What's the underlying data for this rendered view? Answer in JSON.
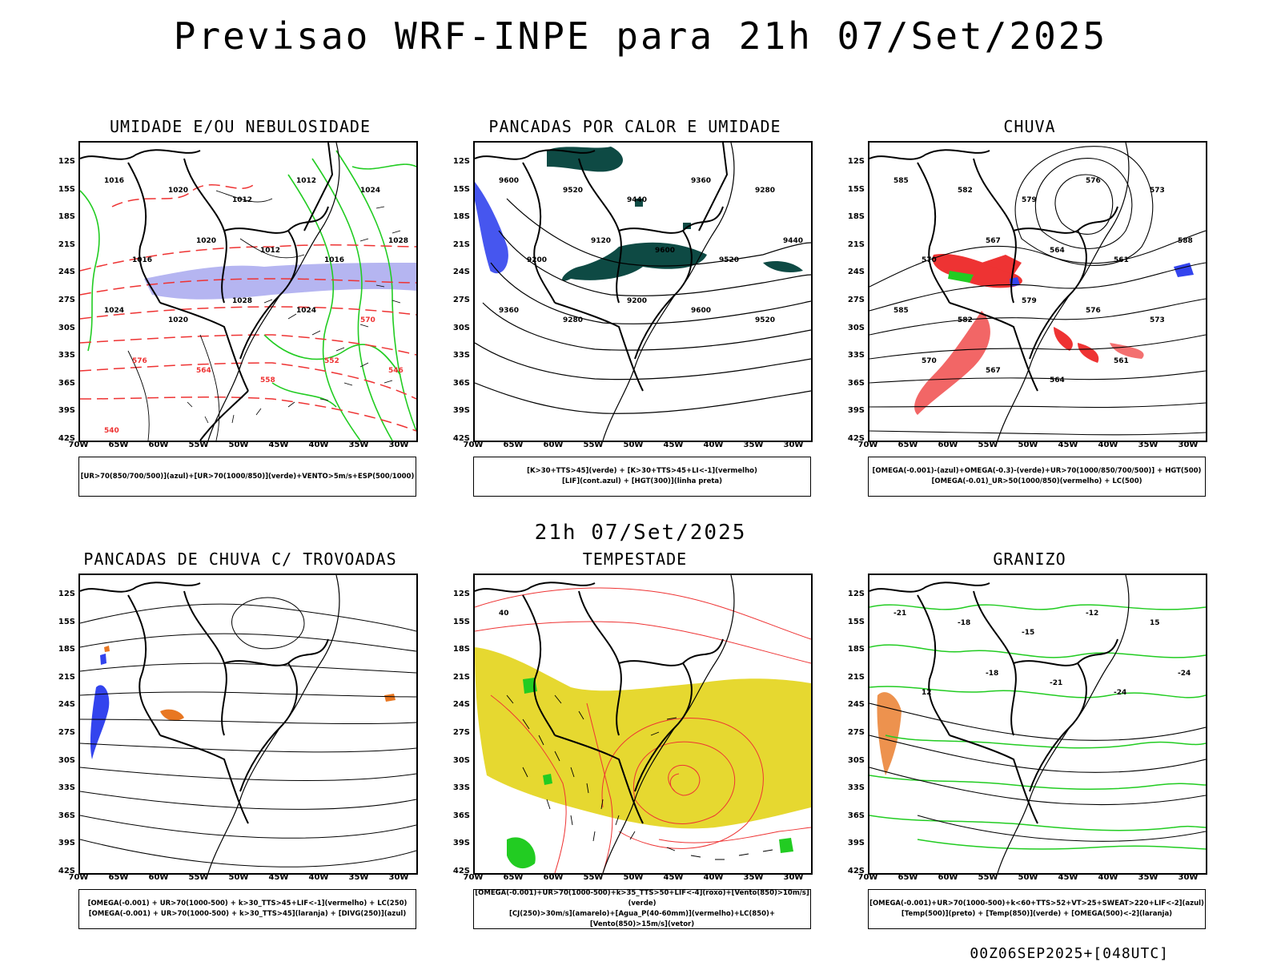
{
  "header": {
    "title": "Previsao WRF-INPE  para 21h 07/Set/2025",
    "subtitle": "21h 07/Set/2025",
    "footer": "00Z06SEP2025+[048UTC]"
  },
  "axes": {
    "lat": [
      "12S",
      "15S",
      "18S",
      "21S",
      "24S",
      "27S",
      "30S",
      "33S",
      "36S",
      "39S",
      "42S"
    ],
    "lon": [
      "70W",
      "65W",
      "60W",
      "55W",
      "50W",
      "45W",
      "40W",
      "35W",
      "30W"
    ]
  },
  "panels": [
    {
      "title": "UMIDADE E/OU NEBULOSIDADE",
      "legend": [
        "[UR>70(850/700/500)](azul)+[UR>70(1000/850)](verde)+VENTO>5m/s+ESP(500/1000)"
      ],
      "labels": [
        "1016",
        "1020",
        "1012",
        "1012",
        "1024",
        "1016",
        "1020",
        "1012",
        "1016",
        "1028",
        "1024",
        "1020",
        "1028",
        "1024",
        "570",
        "576",
        "564",
        "558",
        "552",
        "546",
        "540"
      ]
    },
    {
      "title": "PANCADAS POR CALOR E UMIDADE",
      "legend": [
        "[K>30+TTS>45](verde) + [K>30+TTS>45+LI<-1](vermelho)",
        "[LIF](cont.azul) + [HGT(300)](linha preta)"
      ],
      "labels": [
        "9600",
        "9520",
        "9440",
        "9360",
        "9280",
        "9200",
        "9120",
        "9600",
        "9520",
        "9440",
        "9360",
        "9280",
        "9200",
        "9600",
        "9520"
      ]
    },
    {
      "title": "CHUVA",
      "legend": [
        "[OMEGA(-0.001)-(azul)+OMEGA(-0.3)-(verde)+UR>70(1000/850/700/500)] + HGT(500)",
        "[OMEGA(-0.01)_UR>50(1000/850)(vermelho) + LC(500)"
      ],
      "labels": [
        "585",
        "582",
        "579",
        "576",
        "573",
        "570",
        "567",
        "564",
        "561",
        "588",
        "585",
        "582",
        "579",
        "576",
        "573",
        "570",
        "567",
        "564",
        "561"
      ]
    },
    {
      "title": "PANCADAS DE CHUVA C/ TROVOADAS",
      "legend": [
        "[OMEGA(-0.001) + UR>70(1000-500) + k>30_TTS>45+LIF<-1](vermelho) + LC(250)",
        "[OMEGA(-0.001) + UR>70(1000-500) + k>30_TTS>45](laranja) + [DIVG(250)](azul)"
      ],
      "labels": []
    },
    {
      "title": "TEMPESTADE",
      "legend": [
        "[OMEGA(-0.001)+UR>70(1000-500)+k>35_TTS>50+LIF<-4](roxo)+[Vento(850)>10m/s](verde)",
        "[CJ(250)>30m/s](amarelo)+[Agua_P(40-60mm)](vermelho)+LC(850)+[Vento(850)>15m/s](vetor)"
      ],
      "labels": [
        "40"
      ]
    },
    {
      "title": "GRANIZO",
      "legend": [
        "[OMEGA(-0.001)+UR>70(1000-500)+k<60+TTS>52+VT>25+SWEAT>220+LIF<-2](azul)",
        "[Temp(500)](preto) + [Temp(850)](verde) + [OMEGA(500)<-2](laranja)"
      ],
      "labels": [
        "-21",
        "-18",
        "-15",
        "-12",
        "15",
        "12",
        "-18",
        "-21",
        "-24",
        "-24"
      ]
    }
  ],
  "colors": {
    "green": "#22cc22",
    "red": "#ee3333",
    "blue": "#3344ee",
    "lavender": "#a8a8ee",
    "teal": "#0e4a44",
    "yellow": "#e6d830",
    "orange": "#e87722"
  }
}
